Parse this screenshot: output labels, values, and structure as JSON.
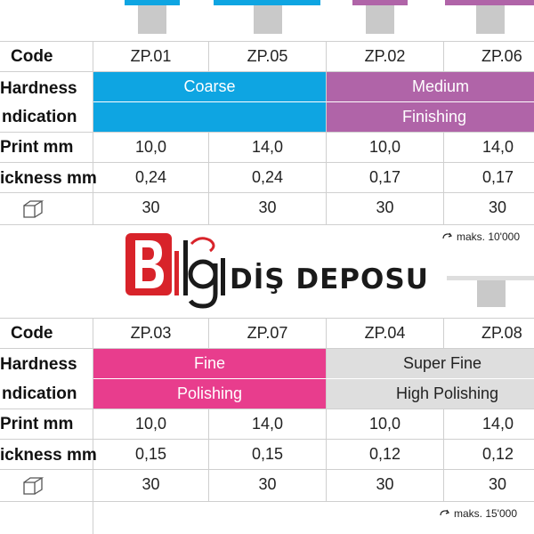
{
  "colors": {
    "coarse": "#0ea5e2",
    "medium": "#b064a8",
    "fine": "#e83d8d",
    "superfine": "#dedede",
    "logo_red": "#d8232a"
  },
  "logo": {
    "brand_mark": "Bilgi",
    "name": "DİŞ DEPOSU"
  },
  "table1": {
    "labels": {
      "code": "Code",
      "hardness": "Hardness",
      "indication": "ndication",
      "print": "Print mm",
      "thickness": "ickness mm"
    },
    "codes": [
      "ZP.01",
      "ZP.05",
      "ZP.02",
      "ZP.06"
    ],
    "hardness": [
      "Coarse",
      "Medium"
    ],
    "indication": [
      "",
      "Finishing"
    ],
    "print": [
      "10,0",
      "14,0",
      "10,0",
      "14,0"
    ],
    "thickness": [
      "0,24",
      "0,24",
      "0,17",
      "0,17"
    ],
    "qty": [
      "30",
      "30",
      "30",
      "30"
    ],
    "icon": "box-icon",
    "max": "maks. 10'000"
  },
  "table2": {
    "labels": {
      "code": "Code",
      "hardness": "Hardness",
      "indication": "ndication",
      "print": "Print mm",
      "thickness": "ickness mm"
    },
    "codes": [
      "ZP.03",
      "ZP.07",
      "ZP.04",
      "ZP.08"
    ],
    "hardness": [
      "Fine",
      "Super Fine"
    ],
    "indication": [
      "Polishing",
      "High Polishing"
    ],
    "print": [
      "10,0",
      "14,0",
      "10,0",
      "14,0"
    ],
    "thickness": [
      "0,15",
      "0,15",
      "0,12",
      "0,12"
    ],
    "qty": [
      "30",
      "30",
      "30",
      "30"
    ],
    "icon": "box-icon",
    "max": "maks. 15'000"
  }
}
